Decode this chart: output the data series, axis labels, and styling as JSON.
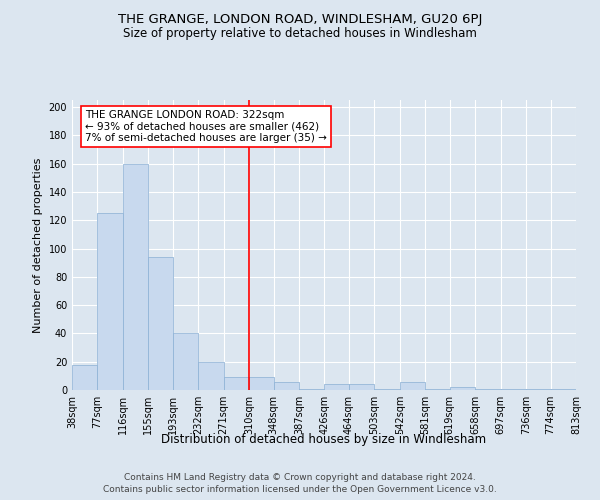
{
  "title": "THE GRANGE, LONDON ROAD, WINDLESHAM, GU20 6PJ",
  "subtitle": "Size of property relative to detached houses in Windlesham",
  "xlabel": "Distribution of detached houses by size in Windlesham",
  "ylabel": "Number of detached properties",
  "bar_color": "#c8d9ee",
  "bar_edge_color": "#8aafd4",
  "background_color": "#dce6f0",
  "plot_bg_color": "#dce6f0",
  "grid_color": "#ffffff",
  "vline_x": 310,
  "vline_color": "red",
  "annotation_line1": "THE GRANGE LONDON ROAD: 322sqm",
  "annotation_line2": "← 93% of detached houses are smaller (462)",
  "annotation_line3": "7% of semi-detached houses are larger (35) →",
  "annotation_box_color": "white",
  "annotation_box_edge": "red",
  "bins": [
    38,
    77,
    116,
    155,
    193,
    232,
    271,
    310,
    348,
    387,
    426,
    464,
    503,
    542,
    581,
    619,
    658,
    697,
    736,
    774,
    813
  ],
  "bar_heights": [
    18,
    125,
    160,
    94,
    40,
    20,
    9,
    9,
    6,
    1,
    4,
    4,
    1,
    6,
    1,
    2,
    1,
    1,
    1,
    1
  ],
  "ylim": [
    0,
    205
  ],
  "yticks": [
    0,
    20,
    40,
    60,
    80,
    100,
    120,
    140,
    160,
    180,
    200
  ],
  "footer_line1": "Contains HM Land Registry data © Crown copyright and database right 2024.",
  "footer_line2": "Contains public sector information licensed under the Open Government Licence v3.0.",
  "title_fontsize": 9.5,
  "subtitle_fontsize": 8.5,
  "xlabel_fontsize": 8.5,
  "ylabel_fontsize": 8,
  "tick_fontsize": 7,
  "footer_fontsize": 6.5,
  "annotation_fontsize": 7.5
}
